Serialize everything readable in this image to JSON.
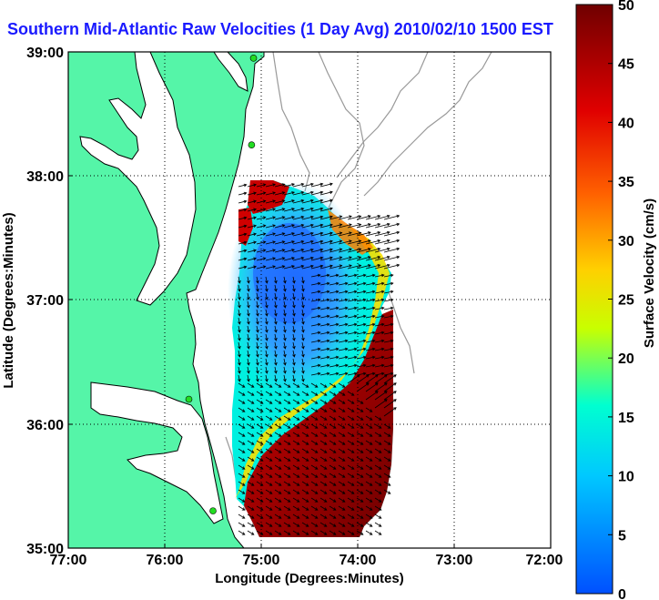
{
  "title": "Southern Mid-Atlantic Raw Velocities (1 Day Avg) 2010/02/10 1500 EST",
  "xlabel": "Longitude (Degrees:Minutes)",
  "ylabel": "Latitude (Degrees:Minutes)",
  "x_ticks": [
    "77:00",
    "76:00",
    "75:00",
    "74:00",
    "73:00",
    "72:00"
  ],
  "y_ticks": [
    "39:00",
    "38:00",
    "37:00",
    "36:00",
    "35:00"
  ],
  "colorbar": {
    "label": "Surface Velocity (cm/s)",
    "ticks": [
      "0",
      "5",
      "10",
      "15",
      "20",
      "25",
      "30",
      "35",
      "40",
      "45",
      "50"
    ],
    "range": [
      0,
      50
    ],
    "colors": [
      "#0050ff",
      "#00c8ff",
      "#00ffd0",
      "#c8ff00",
      "#ffd000",
      "#ff6000",
      "#e00000",
      "#700000"
    ]
  },
  "colors": {
    "land": "#55f5a8",
    "title": "#1a1aff",
    "coast": "#000000",
    "bathymetry": "#999999",
    "station": "#22dd22"
  },
  "stations": [
    {
      "lon": -75.08,
      "lat": 38.95
    },
    {
      "lon": -75.1,
      "lat": 38.25
    },
    {
      "lon": -75.75,
      "lat": 36.2
    },
    {
      "lon": -75.5,
      "lat": 35.3
    }
  ]
}
